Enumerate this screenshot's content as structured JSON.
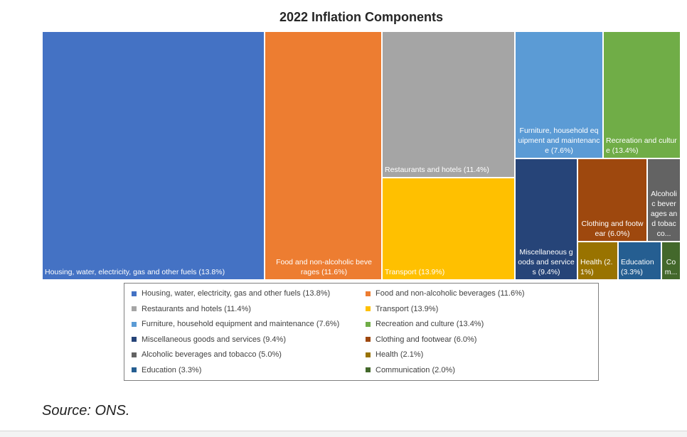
{
  "chart_data": {
    "type": "treemap",
    "title": "2022 Inflation Components",
    "series": [
      {
        "name": "Housing, water, electricity, gas and other fuels",
        "tile_label": "Housing, water, electricity, gas and other fuels (13.8%)",
        "legend_label": "Housing, water, electricity, gas and other fuels (13.8%)",
        "value": 13.8,
        "color": "#4472c4"
      },
      {
        "name": "Food and non-alcoholic beverages",
        "tile_label": "Food and non-alcoholic beverages (11.6%)",
        "legend_label": "Food and non-alcoholic beverages (11.6%)",
        "value": 11.6,
        "color": "#ed7d31"
      },
      {
        "name": "Restaurants and hotels",
        "tile_label": "Restaurants and hotels (11.4%)",
        "legend_label": "Restaurants and hotels (11.4%)",
        "value": 11.4,
        "color": "#a5a5a5"
      },
      {
        "name": "Transport",
        "tile_label": "Transport (13.9%)",
        "legend_label": "Transport (13.9%)",
        "value": 13.9,
        "color": "#ffc000"
      },
      {
        "name": "Furniture, household equipment and maintenance",
        "tile_label": "Furniture, household equipment and maintenance (7.6%)",
        "legend_label": "Furniture, household equipment and maintenance (7.6%)",
        "value": 7.6,
        "color": "#5b9bd5"
      },
      {
        "name": "Recreation and culture",
        "tile_label": "Recreation and culture (13.4%)",
        "legend_label": "Recreation and culture (13.4%)",
        "value": 13.4,
        "color": "#70ad47"
      },
      {
        "name": "Miscellaneous goods and services",
        "tile_label": "Miscellaneous goods and services (9.4%)",
        "legend_label": "Miscellaneous goods and services (9.4%)",
        "value": 9.4,
        "color": "#264478"
      },
      {
        "name": "Clothing and footwear",
        "tile_label": "Clothing and footwear (6.0%)",
        "legend_label": "Clothing and footwear (6.0%)",
        "value": 6.0,
        "color": "#9e480e"
      },
      {
        "name": "Alcoholic beverages and tobacco",
        "tile_label": "Alcoholic beverages and tobacco...",
        "legend_label": "Alcoholic beverages and tobacco (5.0%)",
        "value": 5.0,
        "color": "#636363"
      },
      {
        "name": "Health",
        "tile_label": "Health (2.1%)",
        "legend_label": "Health (2.1%)",
        "value": 2.1,
        "color": "#997300"
      },
      {
        "name": "Education",
        "tile_label": "Education (3.3%)",
        "legend_label": "Education (3.3%)",
        "value": 3.3,
        "color": "#255e91"
      },
      {
        "name": "Communication",
        "tile_label": "Com...",
        "legend_label": "Communication (2.0%)",
        "value": 2.0,
        "color": "#43682b"
      }
    ]
  },
  "source_note": "Source: ONS."
}
